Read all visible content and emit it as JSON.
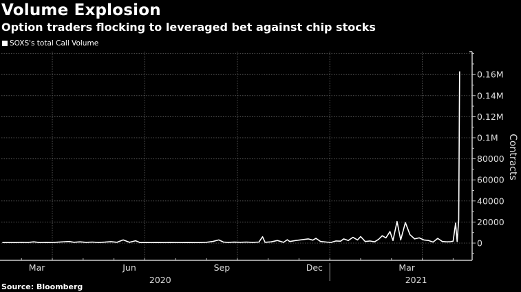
{
  "header": {
    "title": "Volume Explosion",
    "subtitle": "Option traders flocking to leveraged bet against chip stocks"
  },
  "footer": {
    "source": "Source: Bloomberg"
  },
  "colors": {
    "background": "#000000",
    "line": "#ffffff",
    "grid": "#555555",
    "text": "#dddddd"
  },
  "chart_data": {
    "type": "line",
    "title": "Volume Explosion",
    "subtitle": "Option traders flocking to leveraged bet against chip stocks",
    "xlabel": "",
    "ylabel": "Contracts",
    "y_axis_side": "right",
    "ylim": [
      -16000,
      180000
    ],
    "yticks": [
      0,
      20000,
      40000,
      60000,
      80000,
      100000,
      120000,
      140000,
      160000
    ],
    "ytick_labels": [
      "0",
      "20000",
      "40000",
      "60000",
      "80000",
      "0.1M",
      "0.12M",
      "0.14M",
      "0.16M"
    ],
    "x_unit": "months since 2020-01-01",
    "xlim": [
      1.32,
      16.9
    ],
    "xtick_labels": [
      {
        "label": "Mar",
        "x": 2.5
      },
      {
        "label": "Jun",
        "x": 5.5
      },
      {
        "label": "Sep",
        "x": 8.5
      },
      {
        "label": "Dec",
        "x": 11.5
      },
      {
        "label": "Mar",
        "x": 14.5
      }
    ],
    "year_labels": [
      {
        "label": "2020",
        "x": 6.5
      },
      {
        "label": "2021",
        "x": 14.8
      }
    ],
    "year_divider_x": 12.0,
    "gridlines_x": [
      3,
      6,
      9,
      12,
      15
    ],
    "grid": true,
    "legend": {
      "position": "top-left",
      "entries": [
        "SOXS's total Call Volume"
      ]
    },
    "series": [
      {
        "name": "SOXS's total Call Volume",
        "x": [
          1.38,
          1.6,
          1.8,
          2.0,
          2.2,
          2.4,
          2.6,
          2.8,
          3.0,
          3.2,
          3.4,
          3.55,
          3.7,
          3.9,
          4.1,
          4.3,
          4.5,
          4.7,
          4.9,
          5.1,
          5.3,
          5.5,
          5.7,
          5.85,
          6.0,
          6.2,
          6.4,
          6.6,
          6.8,
          7.0,
          7.2,
          7.4,
          7.6,
          7.8,
          8.0,
          8.2,
          8.4,
          8.55,
          8.7,
          8.9,
          9.1,
          9.3,
          9.5,
          9.7,
          9.82,
          9.9,
          10.1,
          10.3,
          10.5,
          10.62,
          10.7,
          10.9,
          11.1,
          11.3,
          11.45,
          11.55,
          11.7,
          11.9,
          12.05,
          12.2,
          12.35,
          12.45,
          12.6,
          12.75,
          12.9,
          13.0,
          13.15,
          13.3,
          13.45,
          13.58,
          13.7,
          13.82,
          13.95,
          14.05,
          14.18,
          14.3,
          14.45,
          14.6,
          14.75,
          14.9,
          15.05,
          15.2,
          15.35,
          15.5,
          15.65,
          15.8,
          15.92,
          16.0,
          16.08,
          16.13,
          16.18,
          16.21
        ],
        "y": [
          500,
          600,
          500,
          800,
          600,
          1200,
          500,
          700,
          600,
          900,
          1300,
          1500,
          800,
          1200,
          700,
          1000,
          600,
          900,
          1400,
          800,
          3000,
          800,
          2200,
          500,
          600,
          500,
          600,
          500,
          700,
          600,
          500,
          600,
          500,
          500,
          800,
          1500,
          3000,
          1000,
          700,
          900,
          800,
          1000,
          700,
          1000,
          6000,
          800,
          1200,
          2500,
          700,
          3200,
          1500,
          2500,
          3200,
          4000,
          2800,
          4500,
          1500,
          1000,
          700,
          2000,
          1800,
          4000,
          2500,
          5500,
          3000,
          6200,
          1500,
          2000,
          1200,
          3500,
          7000,
          5000,
          11000,
          2500,
          20500,
          3000,
          19500,
          8000,
          4000,
          5000,
          3000,
          2500,
          1000,
          4500,
          1500,
          1200,
          1400,
          1800,
          19000,
          1500,
          22000,
          163000
        ]
      }
    ]
  }
}
